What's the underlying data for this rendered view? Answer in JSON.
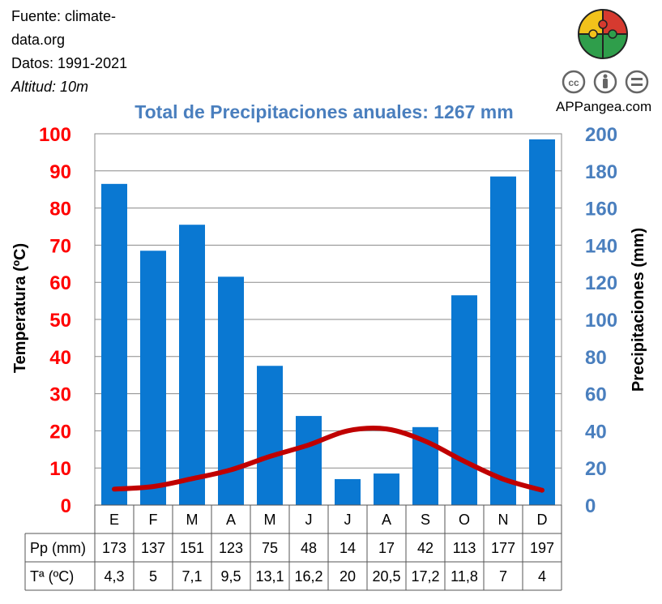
{
  "header": {
    "source_line1": "Fuente: climate-",
    "source_line2": "data.org",
    "dates": "Datos: 1991-2021",
    "altitude": "Altitud: 10m",
    "brand": "APPangea.com"
  },
  "colors": {
    "bars": "#0a78d2",
    "temperature_line": "#c00000",
    "temp_axis": "#ff0000",
    "precip_axis": "#4a7fbe",
    "title": "#4a7fbe"
  },
  "chart_data": {
    "type": "bar",
    "title": "Total de Precipitaciones anuales: 1267 mm",
    "categories": [
      "E",
      "F",
      "M",
      "A",
      "M",
      "J",
      "J",
      "A",
      "S",
      "O",
      "N",
      "D"
    ],
    "series": [
      {
        "name": "Pp (mm)",
        "type": "bar",
        "axis": "right",
        "values": [
          173,
          137,
          151,
          123,
          75,
          48,
          14,
          17,
          42,
          113,
          177,
          197
        ]
      },
      {
        "name": "Tª (ºC)",
        "type": "line",
        "axis": "left",
        "values": [
          "4,3",
          "5",
          "7,1",
          "9,5",
          "13,1",
          "16,2",
          "20",
          "20,5",
          "17,2",
          "11,8",
          "7",
          "4"
        ]
      }
    ],
    "ylabel_left": "Temperatura (ºC)",
    "ylabel_right": "Precipitaciones (mm)",
    "ylim_left": [
      0,
      100
    ],
    "ylim_right": [
      0,
      200
    ],
    "yticks_left": [
      "0",
      "10",
      "20",
      "30",
      "40",
      "50",
      "60",
      "70",
      "80",
      "90",
      "100"
    ],
    "yticks_right": [
      "0",
      "20",
      "40",
      "60",
      "80",
      "100",
      "120",
      "140",
      "160",
      "180",
      "200"
    ],
    "grid": true,
    "table_rows": [
      "Pp (mm)",
      "Tª (ºC)"
    ]
  }
}
